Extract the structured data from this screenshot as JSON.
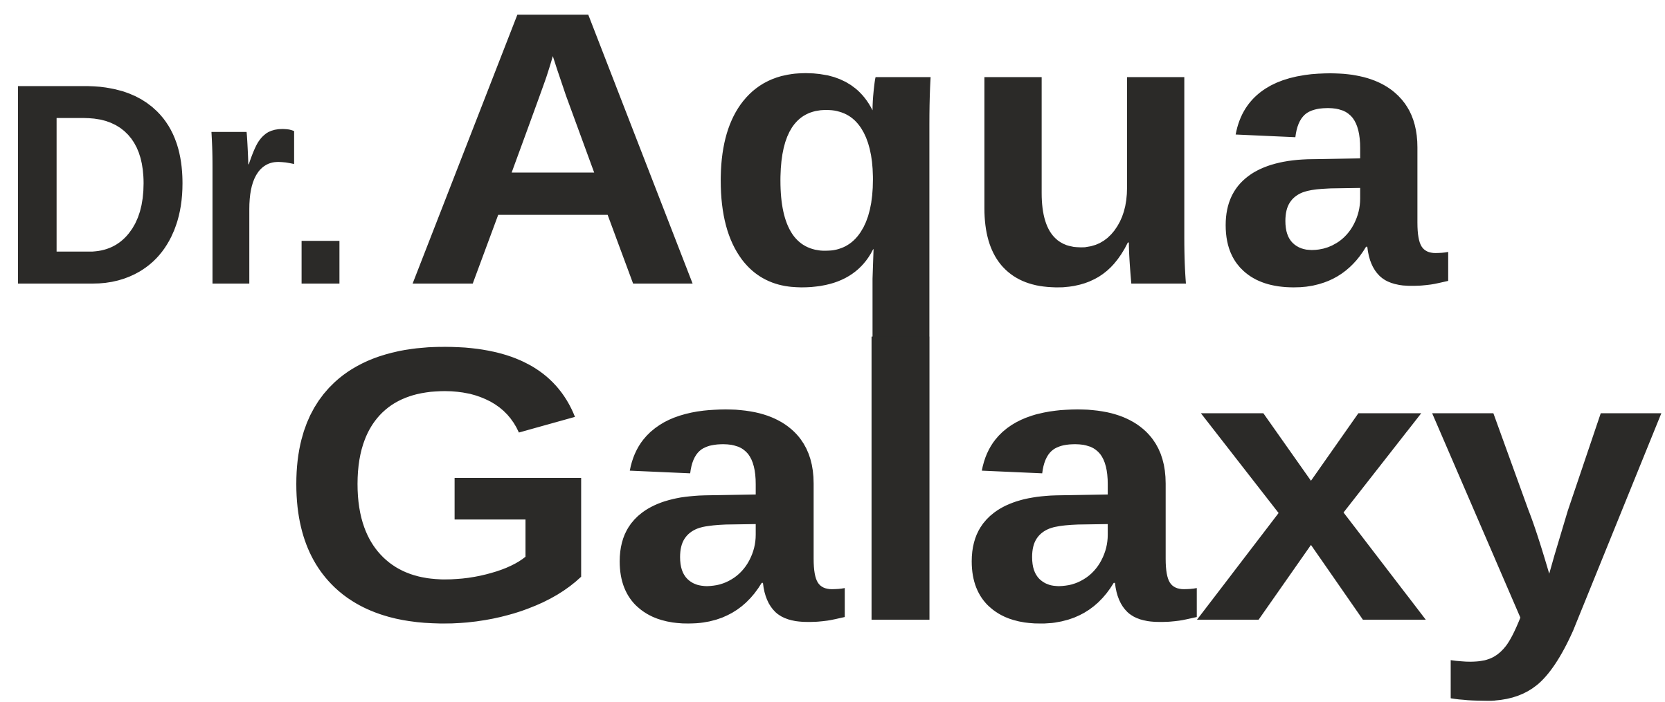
{
  "logo": {
    "prefix": "Dr.",
    "word1": "Aqua",
    "word2": "Galaxy"
  }
}
